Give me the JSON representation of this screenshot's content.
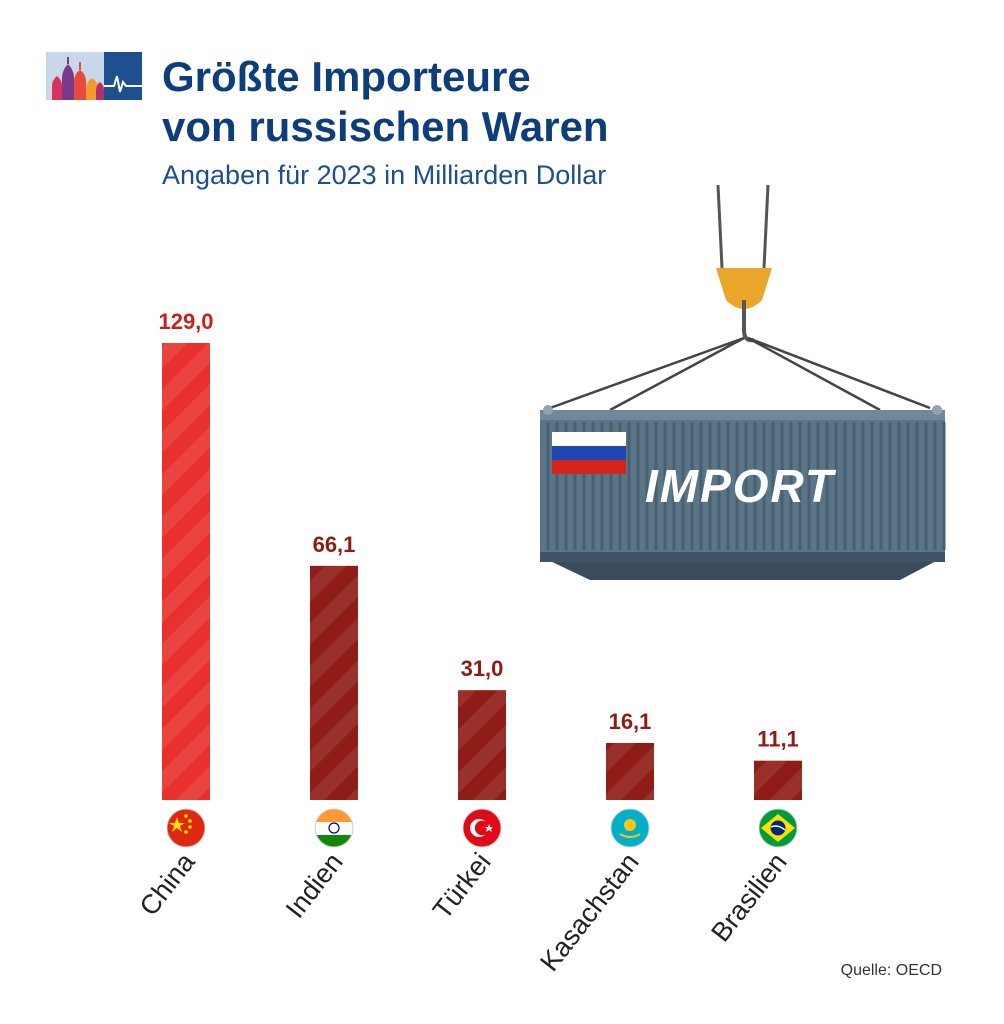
{
  "header": {
    "title_line1": "Größte Importeure",
    "title_line2": "von russischen Waren",
    "subtitle": "Angaben für 2023 in Milliarden Dollar"
  },
  "illustration": {
    "container_text": "IMPORT",
    "icons": [
      "kremlin-logo-icon",
      "crane-hook-icon",
      "shipping-container-icon",
      "russia-flag-icon"
    ]
  },
  "chart_data": {
    "type": "bar",
    "title": "Größte Importeure von russischen Waren",
    "subtitle": "Angaben für 2023 in Milliarden Dollar",
    "categories": [
      "China",
      "Indien",
      "Türkei",
      "Kasachstan",
      "Brasilien"
    ],
    "values": [
      129.0,
      66.1,
      31.0,
      16.1,
      11.1
    ],
    "value_labels": [
      "129,0",
      "66,1",
      "31,0",
      "16,1",
      "11,1"
    ],
    "flags": [
      "china-flag-icon",
      "india-flag-icon",
      "turkey-flag-icon",
      "kazakhstan-flag-icon",
      "brazil-flag-icon"
    ],
    "ylim": [
      0,
      129.0
    ],
    "grid": false,
    "legend": "none",
    "colors": {
      "top_bar": "#e8312e",
      "bar": "#8f1c16",
      "label_top": "#c8201f",
      "label": "#8f1c16"
    }
  },
  "footer": {
    "source": "Quelle: OECD"
  }
}
